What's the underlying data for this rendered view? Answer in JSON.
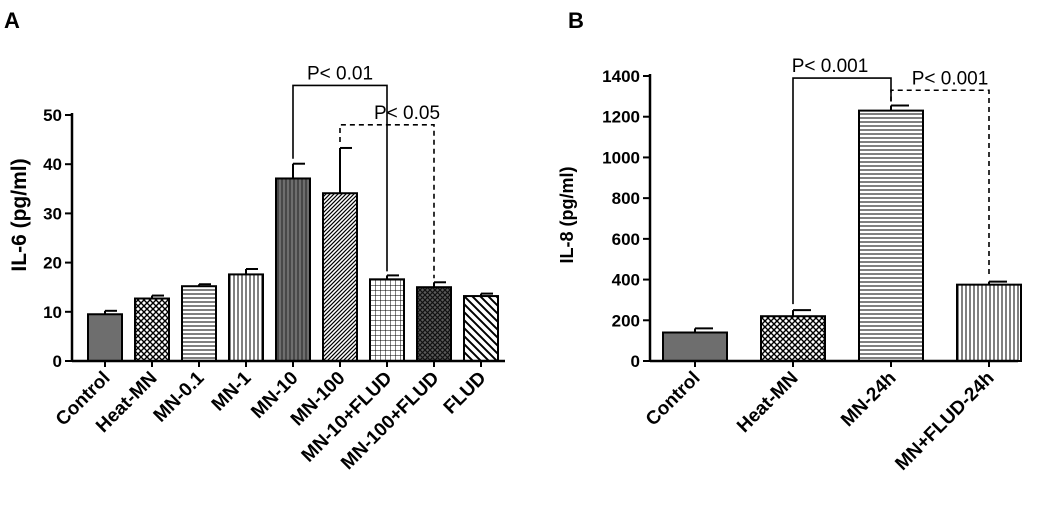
{
  "chart_data": [
    {
      "type": "bar",
      "panel_label": "A",
      "ylabel": "IL-6 (pg/ml)",
      "ylim": [
        0,
        50
      ],
      "yticks": [
        0,
        10,
        20,
        30,
        40,
        50
      ],
      "categories": [
        "Control",
        "Heat-MN",
        "MN-0.1",
        "MN-1",
        "MN-10",
        "MN-100",
        "MN-10+FLUD",
        "MN-100+FLUD",
        "FLUD"
      ],
      "values": [
        9.5,
        12.7,
        15.2,
        17.6,
        37.1,
        34.1,
        16.6,
        15.0,
        13.2
      ],
      "errors": [
        0.7,
        0.6,
        0.4,
        1.1,
        3.0,
        9.2,
        0.8,
        1.0,
        0.5
      ],
      "annotations": [
        {
          "text": "P< 0.01",
          "from": "MN-10",
          "to": "MN-10+FLUD",
          "line": "solid"
        },
        {
          "text": "P< 0.05",
          "from": "MN-100",
          "to": "MN-100+FLUD",
          "line": "dashed"
        }
      ],
      "grid": false
    },
    {
      "type": "bar",
      "panel_label": "B",
      "ylabel": "IL-8 (pg/ml)",
      "ylim": [
        0,
        1400
      ],
      "yticks": [
        0,
        200,
        400,
        600,
        800,
        1000,
        1200,
        1400
      ],
      "categories": [
        "Control",
        "Heat-MN",
        "MN-24h",
        "MN+FLUD-24h"
      ],
      "values": [
        140,
        220,
        1230,
        375
      ],
      "errors": [
        20,
        30,
        25,
        15
      ],
      "annotations": [
        {
          "text": "P< 0.001",
          "from": "Heat-MN",
          "to": "MN-24h",
          "line": "solid"
        },
        {
          "text": "P< 0.001",
          "from": "MN-24h",
          "to": "MN+FLUD-24h",
          "line": "dashed"
        }
      ],
      "grid": false
    }
  ]
}
